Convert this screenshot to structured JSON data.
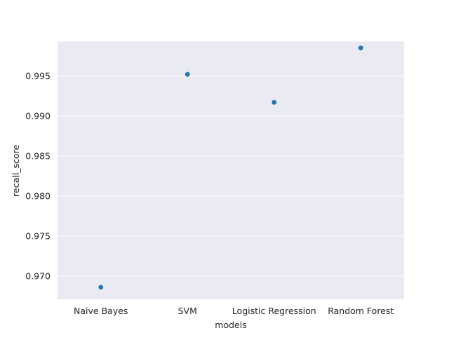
{
  "chart_data": {
    "type": "scatter",
    "title": "",
    "xlabel": "models",
    "ylabel": "recall_score",
    "categories": [
      "Naive Bayes",
      "SVM",
      "Logistic Regression",
      "Random Forest"
    ],
    "series": [
      {
        "values": [
          0.9686,
          0.9952,
          0.9917,
          0.9985
        ]
      }
    ],
    "ylim": [
      0.9671,
      0.9993
    ],
    "yticks": [
      0.97,
      0.975,
      0.98,
      0.985,
      0.99,
      0.995
    ],
    "ytick_labels": [
      "0.970",
      "0.975",
      "0.980",
      "0.985",
      "0.990",
      "0.995"
    ],
    "grid": "horizontal",
    "legend": "none",
    "colors": {
      "plot_background": "#eaeaf2",
      "grid": "#ffffff",
      "marker": "#1f77b4",
      "text": "#262626"
    }
  }
}
